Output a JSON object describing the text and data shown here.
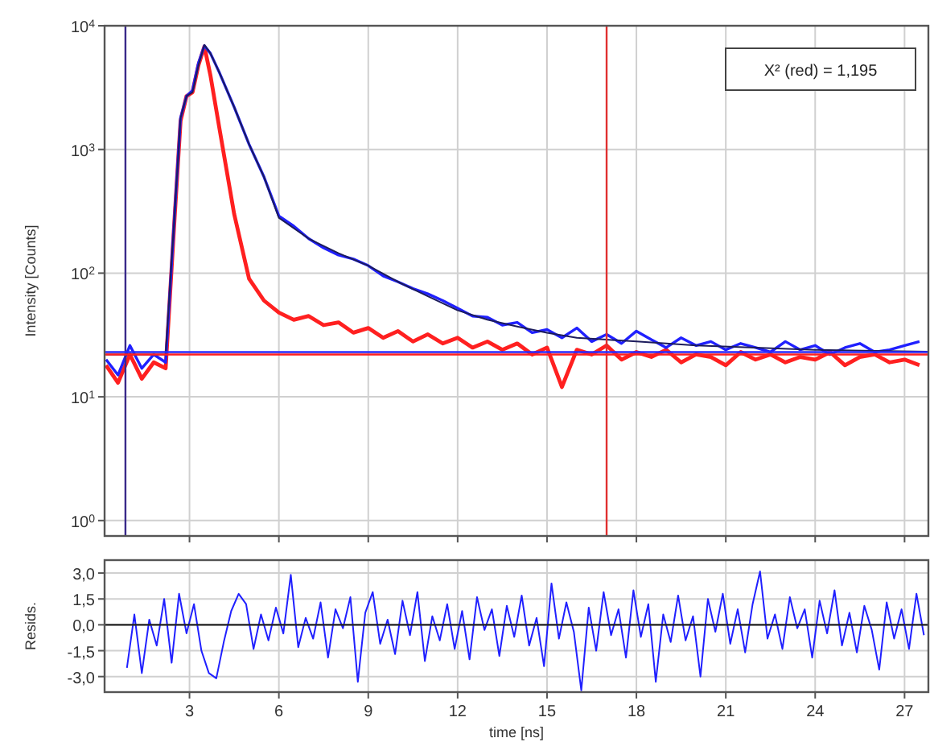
{
  "chart_data": [
    {
      "type": "line",
      "ylabel": "Intensity [Counts]",
      "log": true,
      "grid": true,
      "tick_labels": "y",
      "xlim": [
        0.15,
        27.8
      ],
      "xticks": [
        3,
        6,
        9,
        12,
        15,
        18,
        21,
        24,
        27
      ],
      "ylim": [
        0.75,
        10000
      ],
      "yticks": [
        {
          "value": 1,
          "label": "10$^{0}$"
        },
        {
          "value": 10,
          "label": "10$^{1}$"
        },
        {
          "value": 100,
          "label": "10$^{2}$"
        },
        {
          "value": 1000,
          "label": "10$^{3}$"
        },
        {
          "value": 10000,
          "label": "10$^{4}$"
        }
      ],
      "annotations": [
        "X² (red) = 1,195"
      ],
      "ref_lines": [
        {
          "axis": "x",
          "value": 0.85,
          "color": "#3a2a8a"
        },
        {
          "axis": "x",
          "value": 17,
          "color": "#e03030"
        },
        {
          "axis": "y",
          "value": 22,
          "color": "#ff2020"
        },
        {
          "axis": "y",
          "value": 23,
          "color": "#2a2aff"
        }
      ],
      "series": [
        {
          "color": "#ff2020",
          "x": [
            0.2,
            0.6,
            1.0,
            1.4,
            1.8,
            2.2,
            2.5,
            2.7,
            2.9,
            3.1,
            3.3,
            3.5,
            3.7,
            4.0,
            4.5,
            5,
            5.5,
            6,
            6.5,
            7,
            7.5,
            8,
            8.5,
            9,
            9.5,
            10,
            10.5,
            11,
            11.5,
            12,
            12.5,
            13,
            13.5,
            14,
            14.5,
            15,
            15.5,
            16,
            16.5,
            17,
            17.5,
            18,
            18.5,
            19,
            19.5,
            20,
            20.5,
            21,
            21.5,
            22,
            22.5,
            23,
            23.5,
            24,
            24.5,
            25,
            25.5,
            26,
            26.5,
            27,
            27.5
          ],
          "values": [
            18,
            13,
            22,
            14,
            19,
            17,
            280,
            1700,
            2700,
            2900,
            4800,
            6800,
            4000,
            1500,
            300,
            90,
            60,
            48,
            42,
            45,
            38,
            40,
            33,
            36,
            30,
            34,
            28,
            32,
            27,
            30,
            25,
            28,
            24,
            27,
            22,
            25,
            12,
            24,
            22,
            26,
            20,
            23,
            21,
            24,
            19,
            22,
            21,
            18,
            23,
            20,
            22,
            19,
            21,
            20,
            23,
            18,
            21,
            22,
            19,
            20,
            18
          ]
        },
        {
          "color": "#2020ff",
          "x": [
            0.2,
            0.6,
            1.0,
            1.4,
            1.8,
            2.2,
            2.5,
            2.7,
            2.9,
            3.1,
            3.3,
            3.5,
            3.7,
            4.0,
            4.5,
            5,
            5.5,
            6,
            6.5,
            7,
            7.5,
            8,
            8.5,
            9,
            9.5,
            10,
            10.5,
            11,
            11.5,
            12,
            12.5,
            13,
            13.5,
            14,
            14.5,
            15,
            15.5,
            16,
            16.5,
            17,
            17.5,
            18,
            18.5,
            19,
            19.5,
            20,
            20.5,
            21,
            21.5,
            22,
            22.5,
            23,
            23.5,
            24,
            24.5,
            25,
            25.5,
            26,
            26.5,
            27,
            27.5
          ],
          "values": [
            20,
            15,
            26,
            17,
            22,
            19,
            300,
            1800,
            2700,
            3000,
            5000,
            6900,
            6000,
            4200,
            2200,
            1100,
            600,
            290,
            240,
            190,
            160,
            140,
            130,
            115,
            95,
            85,
            75,
            68,
            60,
            52,
            45,
            44,
            38,
            40,
            33,
            35,
            30,
            36,
            28,
            32,
            27,
            34,
            29,
            25,
            30,
            26,
            28,
            24,
            27,
            25,
            23,
            28,
            24,
            26,
            22,
            25,
            27,
            23,
            24,
            26,
            28
          ]
        },
        {
          "color": "#1c1c5c",
          "x": [
            0.2,
            2.2,
            2.5,
            2.7,
            2.9,
            3.1,
            3.3,
            3.5,
            3.7,
            4,
            4.5,
            5,
            5.5,
            6,
            7,
            8,
            9,
            10,
            11,
            12,
            13,
            14,
            15,
            16,
            17,
            18,
            20,
            22,
            24,
            26,
            27.8
          ],
          "values": [
            22,
            22,
            300,
            1800,
            2700,
            2900,
            4800,
            7000,
            6000,
            4200,
            2200,
            1100,
            600,
            280,
            190,
            145,
            115,
            85,
            65,
            50,
            42,
            37,
            33,
            30,
            29,
            28,
            26,
            25,
            24,
            23.5,
            23.2
          ]
        }
      ]
    },
    {
      "type": "line",
      "xlabel": "time [ns]",
      "ylabel": "Resids.",
      "grid": true,
      "xlim": [
        0.15,
        27.8
      ],
      "xticks": [
        3,
        6,
        9,
        12,
        15,
        18,
        21,
        24,
        27
      ],
      "ylim": [
        -3.9,
        3.75
      ],
      "yticks": [
        {
          "value": -3,
          "label": "-3,0"
        },
        {
          "value": -1.5,
          "label": "-1,5"
        },
        {
          "value": 0,
          "label": "0,0"
        },
        {
          "value": 1.5,
          "label": "1,5"
        },
        {
          "value": 3,
          "label": "3,0"
        }
      ],
      "ref_lines": [
        {
          "axis": "y",
          "value": 0,
          "color": "#222222"
        }
      ],
      "series": [
        {
          "color": "#2020ff",
          "x": [
            0.9,
            1.15,
            1.4,
            1.65,
            1.9,
            2.15,
            2.4,
            2.65,
            2.9,
            3.15,
            3.4,
            3.65,
            3.9,
            4.15,
            4.4,
            4.65,
            4.9,
            5.15,
            5.4,
            5.65,
            5.9,
            6.15,
            6.4,
            6.65,
            6.9,
            7.15,
            7.4,
            7.65,
            7.9,
            8.15,
            8.4,
            8.65,
            8.9,
            9.15,
            9.4,
            9.65,
            9.9,
            10.15,
            10.4,
            10.65,
            10.9,
            11.15,
            11.4,
            11.65,
            11.9,
            12.15,
            12.4,
            12.65,
            12.9,
            13.15,
            13.4,
            13.65,
            13.9,
            14.15,
            14.4,
            14.65,
            14.9,
            15.15,
            15.4,
            15.65,
            15.9,
            16.15,
            16.4,
            16.65,
            16.9,
            17.15,
            17.4,
            17.65,
            17.9,
            18.15,
            18.4,
            18.65,
            18.9,
            19.15,
            19.4,
            19.65,
            19.9,
            20.15,
            20.4,
            20.65,
            20.9,
            21.15,
            21.4,
            21.65,
            21.9,
            22.15,
            22.4,
            22.65,
            22.9,
            23.15,
            23.4,
            23.65,
            23.9,
            24.15,
            24.4,
            24.65,
            24.9,
            25.15,
            25.4,
            25.65,
            25.9,
            26.15,
            26.4,
            26.65,
            26.9,
            27.15,
            27.4,
            27.65
          ],
          "values": [
            -2.5,
            0.6,
            -2.8,
            0.3,
            -1.2,
            1.5,
            -2.2,
            1.8,
            -0.5,
            1.2,
            -1.5,
            -2.8,
            -3.1,
            -1.0,
            0.8,
            1.8,
            1.2,
            -1.4,
            0.6,
            -0.9,
            1.0,
            -0.5,
            2.9,
            -1.3,
            0.4,
            -0.8,
            1.3,
            -1.9,
            0.9,
            -0.2,
            1.6,
            -3.3,
            0.7,
            1.9,
            -1.1,
            0.3,
            -1.7,
            1.4,
            -0.6,
            1.9,
            -2.1,
            0.5,
            -0.9,
            1.2,
            -1.4,
            0.8,
            -2.0,
            1.6,
            -0.3,
            0.9,
            -1.8,
            1.1,
            -0.7,
            1.7,
            -1.2,
            0.4,
            -2.4,
            2.4,
            -0.8,
            1.3,
            -0.4,
            -3.8,
            1.0,
            -1.5,
            1.9,
            -0.6,
            0.9,
            -1.9,
            2.0,
            -0.7,
            1.2,
            -3.3,
            0.6,
            -1.0,
            1.7,
            -0.9,
            0.5,
            -3.0,
            1.5,
            -0.4,
            1.8,
            -1.1,
            0.9,
            -1.6,
            1.2,
            3.1,
            -0.8,
            0.6,
            -1.4,
            1.6,
            -0.2,
            0.9,
            -1.9,
            1.4,
            -0.5,
            2.0,
            -1.2,
            0.7,
            -1.6,
            1.1,
            -0.3,
            -2.6,
            1.3,
            -0.8,
            0.9,
            -1.4,
            1.8,
            -0.6
          ]
        }
      ]
    }
  ]
}
